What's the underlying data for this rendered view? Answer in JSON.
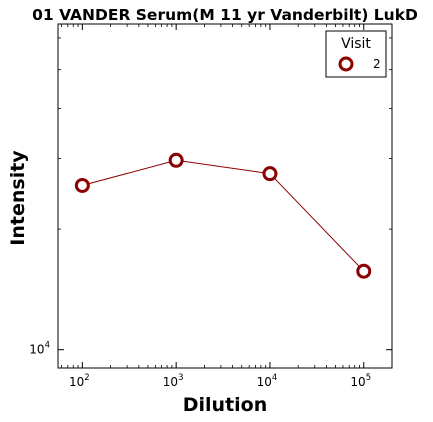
{
  "chart_data": {
    "type": "line",
    "title": "01 VANDER Serum(M 11 yr Vanderbilt) LukD",
    "xlabel": "Dilution",
    "ylabel": "Intensity",
    "x_scale": "log",
    "y_scale": "log",
    "xlim": [
      55,
      200000
    ],
    "ylim": [
      9000,
      65000
    ],
    "x_ticks": [
      {
        "value": 100,
        "base": "10",
        "exp": "2"
      },
      {
        "value": 1000,
        "base": "10",
        "exp": "3"
      },
      {
        "value": 10000,
        "base": "10",
        "exp": "4"
      },
      {
        "value": 100000,
        "base": "10",
        "exp": "5"
      }
    ],
    "y_ticks": [
      {
        "value": 10000,
        "base": "10",
        "exp": "4"
      }
    ],
    "legend": {
      "title": "Visit",
      "position": "top-right"
    },
    "series": [
      {
        "name": "2",
        "color": "#8b0000",
        "marker": "open-circle",
        "x": [
          100,
          1000,
          10000,
          100000
        ],
        "y": [
          25700,
          29700,
          27500,
          15700
        ]
      }
    ],
    "grid": false
  }
}
